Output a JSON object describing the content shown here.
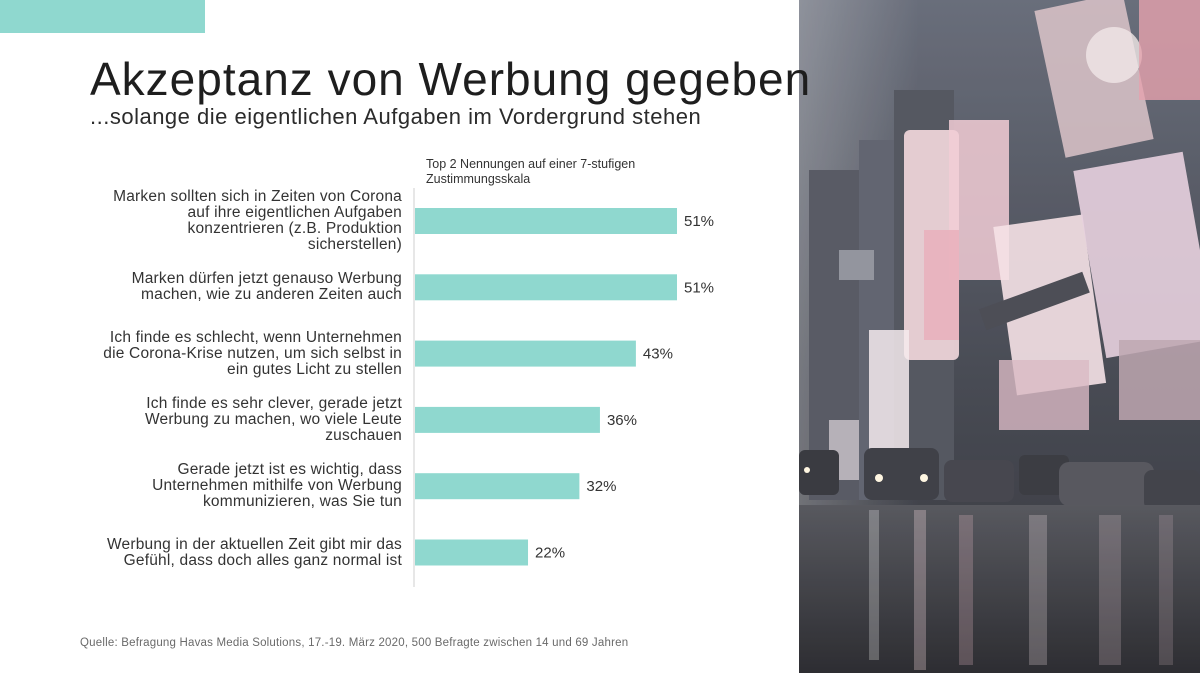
{
  "page": {
    "title": "Akzeptanz von Werbung gegeben",
    "subtitle": "...solange die eigentlichen Aufgaben im Vordergrund stehen",
    "source": "Quelle: Befragung Havas Media Solutions, 17.-19. März 2020, 500 Befragte zwischen 14 und 69 Jahren"
  },
  "colors": {
    "accent": "#8fd8cf",
    "bar": "#8fd8cf",
    "axis": "#cfcfcf"
  },
  "chart_data": {
    "type": "bar",
    "orientation": "horizontal",
    "note": "Top 2 Nennungen auf einer 7-stufigen Zustimmungsskala",
    "categories": [
      "Marken sollten sich in Zeiten von Corona auf ihre eigentlichen Aufgaben konzentrieren (z.B. Produktion sicherstellen)",
      "Marken dürfen jetzt genauso Werbung machen, wie zu anderen Zeiten auch",
      "Ich finde es schlecht, wenn Unternehmen die Corona-Krise nutzen, um sich selbst in ein gutes Licht zu stellen",
      "Ich finde es sehr clever, gerade jetzt Werbung zu machen, wo viele Leute zuschauen",
      "Gerade jetzt ist es wichtig, dass Unternehmen mithilfe von Werbung kommunizieren, was Sie tun",
      "Werbung in der aktuellen Zeit gibt mir das Gefühl, dass doch alles ganz normal ist"
    ],
    "values": [
      51,
      51,
      43,
      36,
      32,
      22
    ],
    "data_labels": [
      "51%",
      "51%",
      "43%",
      "36%",
      "32%",
      "22%"
    ],
    "xlim": [
      0,
      100
    ],
    "grid": false,
    "legend": "none"
  },
  "image": {
    "description_icon": "photo-times-square-icon"
  }
}
